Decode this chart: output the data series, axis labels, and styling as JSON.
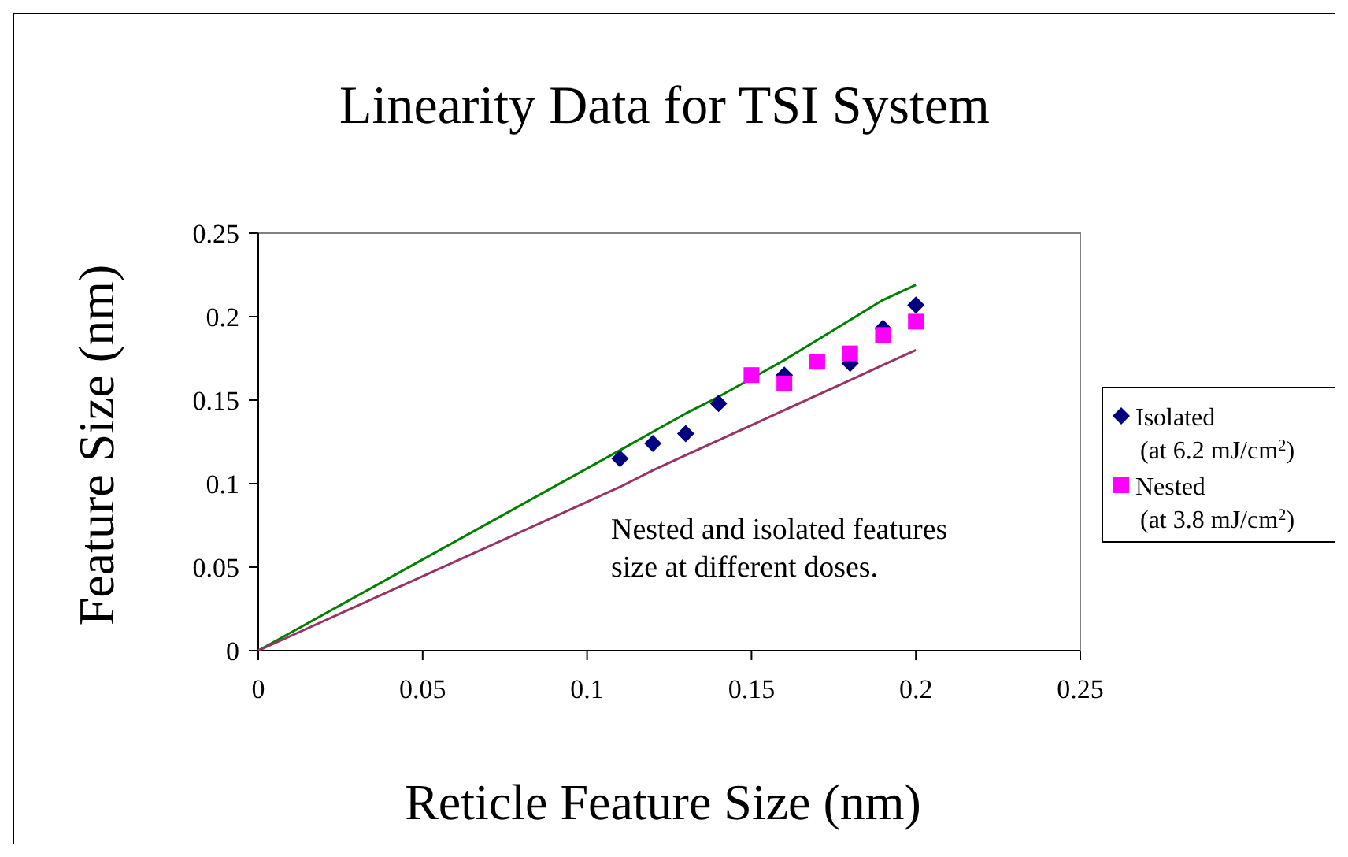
{
  "chart_data": {
    "type": "scatter",
    "title": "Linearity Data for TSI System",
    "xlabel": "Reticle Feature Size (nm)",
    "ylabel": "Feature Size (nm)",
    "xlim": [
      0,
      0.25
    ],
    "xticks": [
      0,
      0.05,
      0.1,
      0.15,
      0.2,
      0.25
    ],
    "ylim": [
      0,
      0.25
    ],
    "yticks": [
      0,
      0.05,
      0.1,
      0.15,
      0.2,
      0.25
    ],
    "grid": false,
    "legend": "right",
    "annotations": [
      "Nested and isolated features\n size at different doses."
    ],
    "series": [
      {
        "type": "line",
        "color": "#008000",
        "x": [
          0,
          0.11,
          0.12,
          0.13,
          0.14,
          0.15,
          0.16,
          0.17,
          0.18,
          0.19,
          0.2
        ],
        "values": [
          0,
          0.12,
          0.131,
          0.142,
          0.152,
          0.163,
          0.174,
          0.186,
          0.198,
          0.21,
          0.219
        ]
      },
      {
        "type": "line",
        "color": "#993366",
        "x": [
          0,
          0.11,
          0.12,
          0.13,
          0.14,
          0.15,
          0.16,
          0.17,
          0.18,
          0.19,
          0.2
        ],
        "values": [
          0,
          0.098,
          0.108,
          0.117,
          0.126,
          0.135,
          0.144,
          0.153,
          0.162,
          0.171,
          0.18
        ]
      },
      {
        "name": "Isolated\n(at 6.2 mJ/cm$^{2}$)",
        "color": "#000080",
        "marker": "diamond",
        "x": [
          0.11,
          0.12,
          0.13,
          0.14,
          0.16,
          0.18,
          0.19,
          0.2
        ],
        "values": [
          0.115,
          0.124,
          0.13,
          0.148,
          0.165,
          0.172,
          0.193,
          0.207
        ]
      },
      {
        "name": "Nested\n(at 3.8 mJ/cm$^{2}$)",
        "color": "#ff00ff",
        "marker": "square",
        "x": [
          0.15,
          0.16,
          0.17,
          0.18,
          0.19,
          0.2
        ],
        "values": [
          0.165,
          0.16,
          0.173,
          0.178,
          0.189,
          0.197
        ]
      }
    ]
  }
}
